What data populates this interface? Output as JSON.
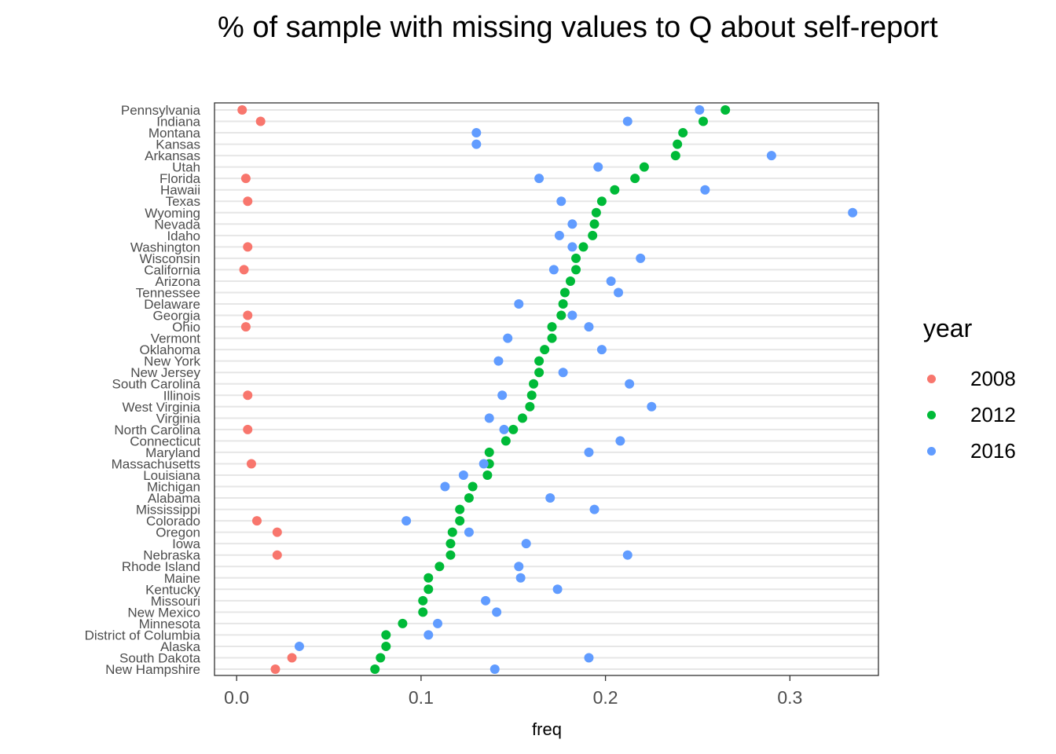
{
  "chart_data": {
    "type": "scatter",
    "title": "% of sample with missing values to Q about self-report",
    "xlabel": "freq",
    "ylabel": "",
    "xlim": [
      -0.012,
      0.348
    ],
    "xticks": [
      0.0,
      0.1,
      0.2,
      0.3
    ],
    "xtick_labels": [
      "0.0",
      "0.1",
      "0.2",
      "0.3"
    ],
    "grid": true,
    "legend_title": "year",
    "legend_position": "right",
    "categories": [
      "Pennsylvania",
      "Indiana",
      "Montana",
      "Kansas",
      "Arkansas",
      "Utah",
      "Florida",
      "Hawaii",
      "Texas",
      "Wyoming",
      "Nevada",
      "Idaho",
      "Washington",
      "Wisconsin",
      "California",
      "Arizona",
      "Tennessee",
      "Delaware",
      "Georgia",
      "Ohio",
      "Vermont",
      "Oklahoma",
      "New York",
      "New Jersey",
      "South Carolina",
      "Illinois",
      "West Virginia",
      "Virginia",
      "North Carolina",
      "Connecticut",
      "Maryland",
      "Massachusetts",
      "Louisiana",
      "Michigan",
      "Alabama",
      "Mississippi",
      "Colorado",
      "Oregon",
      "Iowa",
      "Nebraska",
      "Rhode Island",
      "Maine",
      "Kentucky",
      "Missouri",
      "New Mexico",
      "Minnesota",
      "District of Columbia",
      "Alaska",
      "South Dakota",
      "New Hampshire"
    ],
    "series": [
      {
        "name": "2008",
        "color": "#F8766D",
        "values": [
          0.003,
          0.013,
          null,
          null,
          null,
          null,
          0.005,
          null,
          0.006,
          null,
          null,
          null,
          0.006,
          null,
          0.004,
          null,
          null,
          null,
          0.006,
          0.005,
          null,
          null,
          null,
          null,
          null,
          0.006,
          null,
          null,
          0.006,
          null,
          null,
          0.008,
          null,
          null,
          null,
          null,
          0.011,
          0.022,
          null,
          0.022,
          null,
          null,
          null,
          null,
          null,
          null,
          null,
          null,
          0.03,
          0.021
        ]
      },
      {
        "name": "2012",
        "color": "#00BA38",
        "values": [
          0.265,
          0.253,
          0.242,
          0.239,
          0.238,
          0.221,
          0.216,
          0.205,
          0.198,
          0.195,
          0.194,
          0.193,
          0.188,
          0.184,
          0.184,
          0.181,
          0.178,
          0.177,
          0.176,
          0.171,
          0.171,
          0.167,
          0.164,
          0.164,
          0.161,
          0.16,
          0.159,
          0.155,
          0.15,
          0.146,
          0.137,
          0.137,
          0.136,
          0.128,
          0.126,
          0.121,
          0.121,
          0.117,
          0.116,
          0.116,
          0.11,
          0.104,
          0.104,
          0.101,
          0.101,
          0.09,
          0.081,
          0.081,
          0.078,
          0.075
        ]
      },
      {
        "name": "2016",
        "color": "#619CFF",
        "values": [
          0.251,
          0.212,
          0.13,
          0.13,
          0.29,
          0.196,
          0.164,
          0.254,
          0.176,
          0.334,
          0.182,
          0.175,
          0.182,
          0.219,
          0.172,
          0.203,
          0.207,
          0.153,
          0.182,
          0.191,
          0.147,
          0.198,
          0.142,
          0.177,
          0.213,
          0.144,
          0.225,
          0.137,
          0.145,
          0.208,
          0.191,
          0.134,
          0.123,
          0.113,
          0.17,
          0.194,
          0.092,
          0.126,
          0.157,
          0.212,
          0.153,
          0.154,
          0.174,
          0.135,
          0.141,
          0.109,
          0.104,
          0.034,
          0.191,
          0.14
        ]
      }
    ]
  }
}
